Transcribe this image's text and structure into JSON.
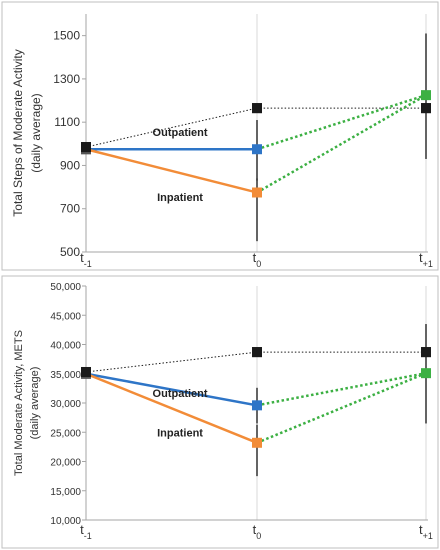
{
  "chart_data": [
    {
      "type": "line",
      "title": "",
      "ylabel": "Total Steps of Moderate Activity",
      "ylabel_sub": "(daily average)",
      "xlabel": "",
      "ylim": [
        500,
        1600
      ],
      "yticks": [
        500,
        700,
        900,
        1100,
        1300,
        1500
      ],
      "ytick_labels": [
        "500",
        "700",
        "900",
        "1100",
        "1300",
        "1500"
      ],
      "categories": [
        "t-1",
        "t0",
        "t+1"
      ],
      "category_labels": [
        {
          "base": "t",
          "sub": "-1"
        },
        {
          "base": "t",
          "sub": "0"
        },
        {
          "base": "t",
          "sub": "+1"
        }
      ],
      "grid": "vertical",
      "legend": "none",
      "series": [
        {
          "name": "",
          "color": "#1a1a1a",
          "style": "dotted-thin",
          "marker": "square",
          "points": [
            [
              0,
              985
            ],
            [
              1,
              1165
            ],
            [
              2,
              1165
            ]
          ],
          "errors": [
            null,
            null,
            [
              930,
              1510
            ]
          ]
        },
        {
          "name": "Outpatient",
          "color": "#2e75c7",
          "style": "solid",
          "marker": "square",
          "points": [
            [
              0,
              975
            ],
            [
              1,
              975
            ]
          ],
          "errors": [
            null,
            [
              830,
              1110
            ]
          ]
        },
        {
          "name": "Inpatient",
          "color": "#f28c38",
          "style": "solid",
          "marker": "square",
          "points": [
            [
              0,
              975
            ],
            [
              1,
              775
            ]
          ],
          "errors": [
            null,
            [
              550,
              840
            ]
          ]
        },
        {
          "name": "",
          "color": "#3cb043",
          "style": "dotted-thick",
          "marker": "none",
          "points": [
            [
              1,
              975
            ],
            [
              2,
              1225
            ]
          ],
          "errors": [
            null,
            null
          ]
        },
        {
          "name": "",
          "color": "#3cb043",
          "style": "dotted-thick",
          "marker": "square",
          "points": [
            [
              1,
              775
            ],
            [
              2,
              1225
            ]
          ],
          "errors": [
            null,
            null
          ]
        }
      ],
      "annotations": [
        {
          "text": "Outpatient",
          "x": 0.55,
          "y": 1035
        },
        {
          "text": "Inpatient",
          "x": 0.55,
          "y": 735
        }
      ]
    },
    {
      "type": "line",
      "title": "",
      "ylabel": "Total Moderate Activity, METS",
      "ylabel_sub": "(daily average)",
      "xlabel": "",
      "ylim": [
        10000,
        50000
      ],
      "yticks": [
        10000,
        15000,
        20000,
        25000,
        30000,
        35000,
        40000,
        45000,
        50000
      ],
      "ytick_labels": [
        "10,000",
        "15,000",
        "20,000",
        "25,000",
        "30,000",
        "35,000",
        "40,000",
        "45,000",
        "50,000"
      ],
      "categories": [
        "t-1",
        "t0",
        "t+1"
      ],
      "category_labels": [
        {
          "base": "t",
          "sub": "-1"
        },
        {
          "base": "t",
          "sub": "0"
        },
        {
          "base": "t",
          "sub": "+1"
        }
      ],
      "grid": "vertical",
      "legend": "none",
      "series": [
        {
          "name": "",
          "color": "#1a1a1a",
          "style": "dotted-thin",
          "marker": "square",
          "points": [
            [
              0,
              35300
            ],
            [
              1,
              38700
            ],
            [
              2,
              38700
            ]
          ],
          "errors": [
            null,
            null,
            [
              26500,
              43500
            ]
          ]
        },
        {
          "name": "Outpatient",
          "color": "#2e75c7",
          "style": "solid",
          "marker": "square",
          "points": [
            [
              0,
              35000
            ],
            [
              1,
              29600
            ]
          ],
          "errors": [
            null,
            [
              26500,
              32600
            ]
          ]
        },
        {
          "name": "Inpatient",
          "color": "#f28c38",
          "style": "solid",
          "marker": "square",
          "points": [
            [
              0,
              35000
            ],
            [
              1,
              23200
            ]
          ],
          "errors": [
            null,
            [
              17500,
              26300
            ]
          ]
        },
        {
          "name": "",
          "color": "#3cb043",
          "style": "dotted-thick",
          "marker": "none",
          "points": [
            [
              1,
              29600
            ],
            [
              2,
              35100
            ]
          ],
          "errors": [
            null,
            null
          ]
        },
        {
          "name": "",
          "color": "#3cb043",
          "style": "dotted-thick",
          "marker": "square",
          "points": [
            [
              1,
              23200
            ],
            [
              2,
              35100
            ]
          ],
          "errors": [
            null,
            null
          ]
        }
      ],
      "annotations": [
        {
          "text": "Outpatient",
          "x": 0.55,
          "y": 31000
        },
        {
          "text": "Inpatient",
          "x": 0.55,
          "y": 24300
        }
      ]
    }
  ]
}
